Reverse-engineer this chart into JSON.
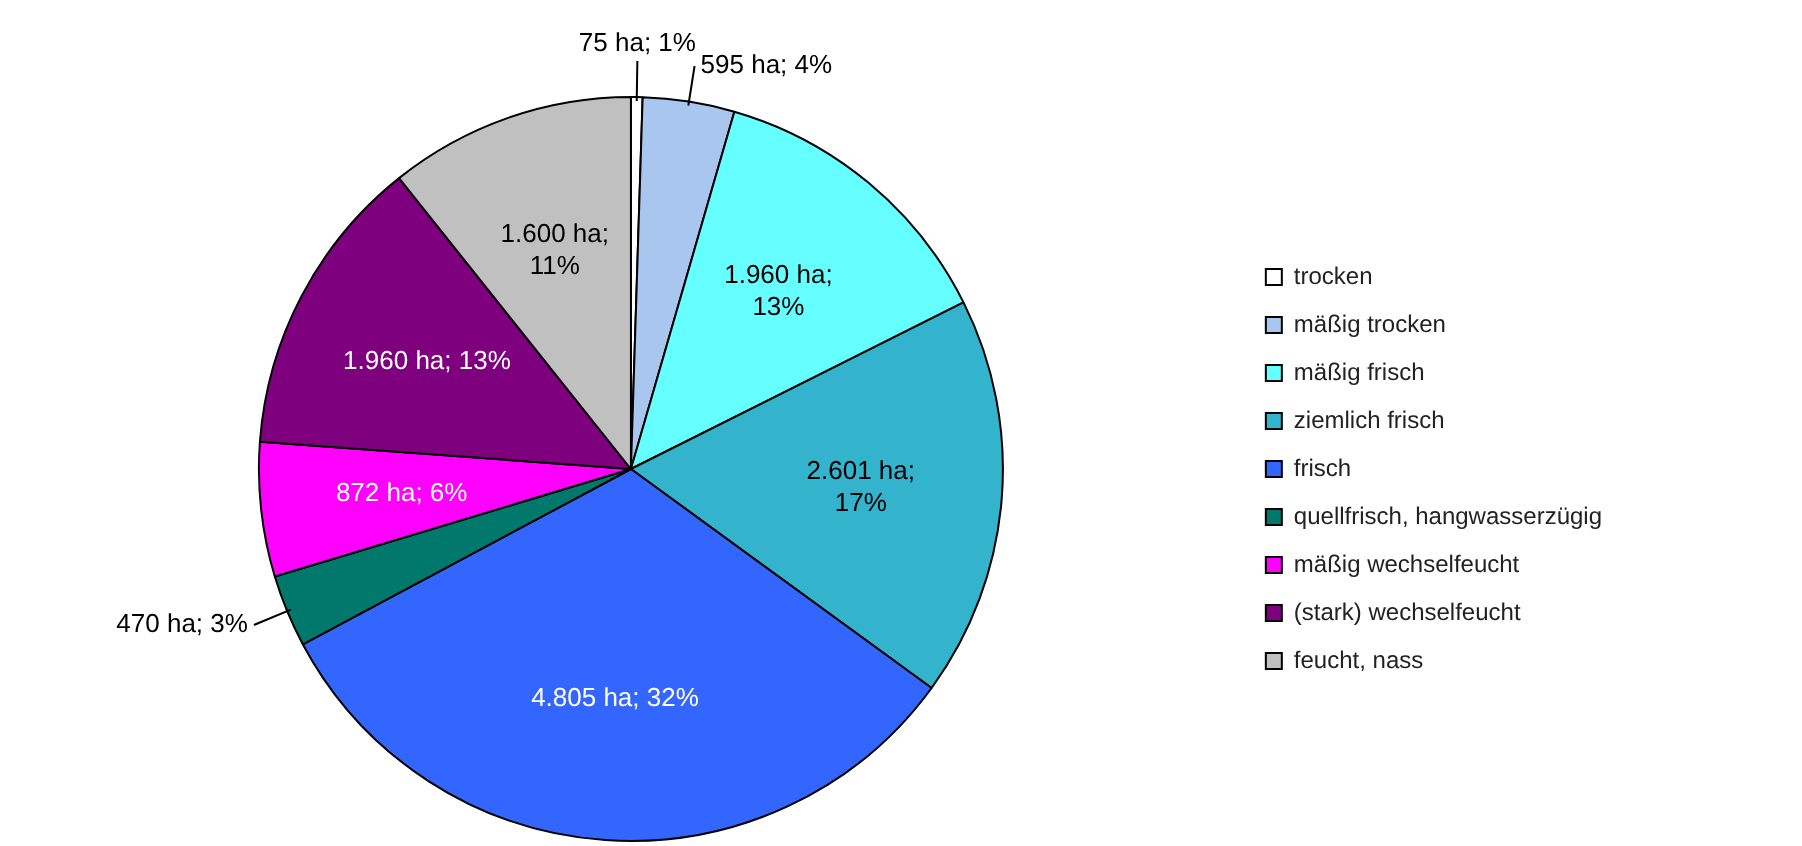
{
  "chart_data": {
    "type": "pie",
    "categories": [
      "trocken",
      "mäßig trocken",
      "mäßig frisch",
      "ziemlich frisch",
      "frisch",
      "quellfrisch, hangwasserzügig",
      "mäßig wechselfeucht",
      "(stark) wechselfeucht",
      "feucht, nass"
    ],
    "values": [
      75,
      595,
      1960,
      2601,
      4805,
      470,
      872,
      1960,
      1600
    ],
    "value_labels": [
      "75 ha; 1%",
      "595 ha; 4%",
      "1.960 ha; 13%",
      "2.601 ha; 17%",
      "4.805 ha; 32%",
      "470 ha; 3%",
      "872 ha; 6%",
      "1.960 ha; 13%",
      "1.600 ha; 11%"
    ],
    "colors": [
      "#ffffff",
      "#a9c6ee",
      "#66ffff",
      "#33b3cc",
      "#3366ff",
      "#00796c",
      "#ff00ff",
      "#7f007f",
      "#c0c0c0"
    ],
    "legend": "right"
  }
}
